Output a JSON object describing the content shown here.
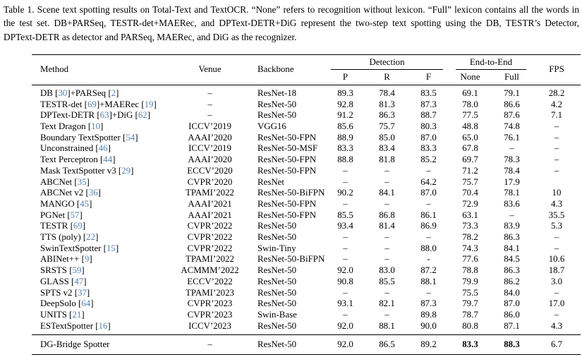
{
  "caption": "Table 1. Scene text spotting results on Total-Text and TextOCR. “None” refers to recognition without lexicon. “Full” lexicon contains all the words in the test set. DB+PARSeq, TESTR-det+MAERec, and DPText-DETR+DiG represent the two-step text spotting using the DB, TESTR’s Detector, DPText-DETR as detector and PARSeq, MAERec, and DiG as the recognizer.",
  "colors": {
    "citation_link": "#5580b0",
    "body_text": "#000000"
  },
  "table": {
    "headers": {
      "method": "Method",
      "venue": "Venue",
      "backbone": "Backbone",
      "detection": "Detection",
      "end_to_end": "End-to-End",
      "fps": "FPS",
      "p": "P",
      "r": "R",
      "f": "F",
      "none": "None",
      "full": "Full"
    },
    "rows": [
      {
        "method": "DB [30]+PARSeq [2]",
        "venue": "–",
        "backbone": "ResNet-18",
        "p": "89.3",
        "r": "78.4",
        "f": "83.5",
        "none": "69.1",
        "full": "79.1",
        "fps": "28.2"
      },
      {
        "method": "TESTR-det [69]+MAERec [19]",
        "venue": "–",
        "backbone": "ResNet-50",
        "p": "92.8",
        "r": "81.3",
        "f": "87.3",
        "none": "78.0",
        "full": "86.6",
        "fps": "4.2"
      },
      {
        "method": "DPText-DETR [63]+DiG [62]",
        "venue": "–",
        "backbone": "ResNet-50",
        "p": "91.2",
        "r": "86.3",
        "f": "88.7",
        "none": "77.5",
        "full": "87.6",
        "fps": "7.1"
      },
      {
        "method": "Text Dragon [10]",
        "venue": "ICCV’2019",
        "backbone": "VGG16",
        "p": "85.6",
        "r": "75.7",
        "f": "80.3",
        "none": "48.8",
        "full": "74.8",
        "fps": "–"
      },
      {
        "method": "Boundary TextSpotter [54]",
        "venue": "AAAI’2020",
        "backbone": "ResNet-50-FPN",
        "p": "88.9",
        "r": "85.0",
        "f": "87.0",
        "none": "65.0",
        "full": "76.1",
        "fps": "–"
      },
      {
        "method": "Unconstrained [46]",
        "venue": "ICCV’2019",
        "backbone": "ResNet-50-MSF",
        "p": "83.3",
        "r": "83.4",
        "f": "83.3",
        "none": "67.8",
        "full": "–",
        "fps": "–"
      },
      {
        "method": "Text Perceptron [44]",
        "venue": "AAAI’2020",
        "backbone": "ResNet-50-FPN",
        "p": "88.8",
        "r": "81.8",
        "f": "85.2",
        "none": "69.7",
        "full": "78.3",
        "fps": "–"
      },
      {
        "method": "Mask TextSpotter v3 [29]",
        "venue": "ECCV’2020",
        "backbone": "ResNet-50-FPN",
        "p": "–",
        "r": "–",
        "f": "–",
        "none": "71.2",
        "full": "78.4",
        "fps": "–"
      },
      {
        "method": "ABCNet [35]",
        "venue": "CVPR’2020",
        "backbone": "ResNet",
        "p": "–",
        "r": "–",
        "f": "64.2",
        "none": "75.7",
        "full": "17.9",
        "fps": ""
      },
      {
        "method": "ABCNet v2 [36]",
        "venue": "TPAMI’2022",
        "backbone": "ResNet-50-BiFPN",
        "p": "90.2",
        "r": "84.1",
        "f": "87.0",
        "none": "70.4",
        "full": "78.1",
        "fps": "10"
      },
      {
        "method": "MANGO [45]",
        "venue": "AAAI’2021",
        "backbone": "ResNet-50-FPN",
        "p": "–",
        "r": "–",
        "f": "–",
        "none": "72.9",
        "full": "83.6",
        "fps": "4.3"
      },
      {
        "method": "PGNet [57]",
        "venue": "AAAI’2021",
        "backbone": "ResNet-50-FPN",
        "p": "85.5",
        "r": "86.8",
        "f": "86.1",
        "none": "63.1",
        "full": "–",
        "fps": "35.5"
      },
      {
        "method": "TESTR [69]",
        "venue": "CVPR’2022",
        "backbone": "ResNet-50",
        "p": "93.4",
        "r": "81.4",
        "f": "86.9",
        "none": "73.3",
        "full": "83.9",
        "fps": "5.3"
      },
      {
        "method": "TTS (poly) [22]",
        "venue": "CVPR’2022",
        "backbone": "ResNet-50",
        "p": "–",
        "r": "–",
        "f": "–",
        "none": "78.2",
        "full": "86.3",
        "fps": "–"
      },
      {
        "method": "SwinTextSpotter [15]",
        "venue": "CVPR’2022",
        "backbone": "Swin-Tiny",
        "p": "–",
        "r": "–",
        "f": "88.0",
        "none": "74.3",
        "full": "84.1",
        "fps": "–"
      },
      {
        "method": "ABINet++ [9]",
        "venue": "TPAMI’2022",
        "backbone": "ResNet-50-BiFPN",
        "p": "–",
        "r": "–",
        "f": "-",
        "none": "77.6",
        "full": "84.5",
        "fps": "10.6"
      },
      {
        "method": "SRSTS [59]",
        "venue": "ACMMM’2022",
        "backbone": "ResNet-50",
        "p": "92.0",
        "r": "83.0",
        "f": "87.2",
        "none": "78.8",
        "full": "86.3",
        "fps": "18.7"
      },
      {
        "method": "GLASS [47]",
        "venue": "ECCV’2022",
        "backbone": "ResNet-50",
        "p": "90.8",
        "r": "85.5",
        "f": "88.1",
        "none": "79.9",
        "full": "86.2",
        "fps": "3.0"
      },
      {
        "method": "SPTS v2 [37]",
        "venue": "TPAMI’2023",
        "backbone": "ResNet-50",
        "p": "–",
        "r": "–",
        "f": "–",
        "none": "75.5",
        "full": "84.0",
        "fps": "–"
      },
      {
        "method": "DeepSolo [64]",
        "venue": "CVPR’2023",
        "backbone": "ResNet-50",
        "p": "93.1",
        "r": "82.1",
        "f": "87.3",
        "none": "79.7",
        "full": "87.0",
        "fps": "17.0"
      },
      {
        "method": "UNITS [21]",
        "venue": "CVPR’2023",
        "backbone": "Swin-Base",
        "p": "–",
        "r": "–",
        "f": "89.8",
        "none": "78.7",
        "full": "86.0",
        "fps": "–"
      },
      {
        "method": "ESTextSpotter [16]",
        "venue": "ICCV’2023",
        "backbone": "ResNet-50",
        "p": "92.0",
        "r": "88.1",
        "f": "90.0",
        "none": "80.8",
        "full": "87.1",
        "fps": "4.3"
      }
    ],
    "final_row": {
      "method": "DG-Bridge Spotter",
      "venue": "–",
      "backbone": "ResNet-50",
      "p": "92.0",
      "r": "86.5",
      "f": "89.2",
      "none": "83.3",
      "full": "88.3",
      "fps": "6.7",
      "bold": [
        "none",
        "full"
      ]
    }
  }
}
